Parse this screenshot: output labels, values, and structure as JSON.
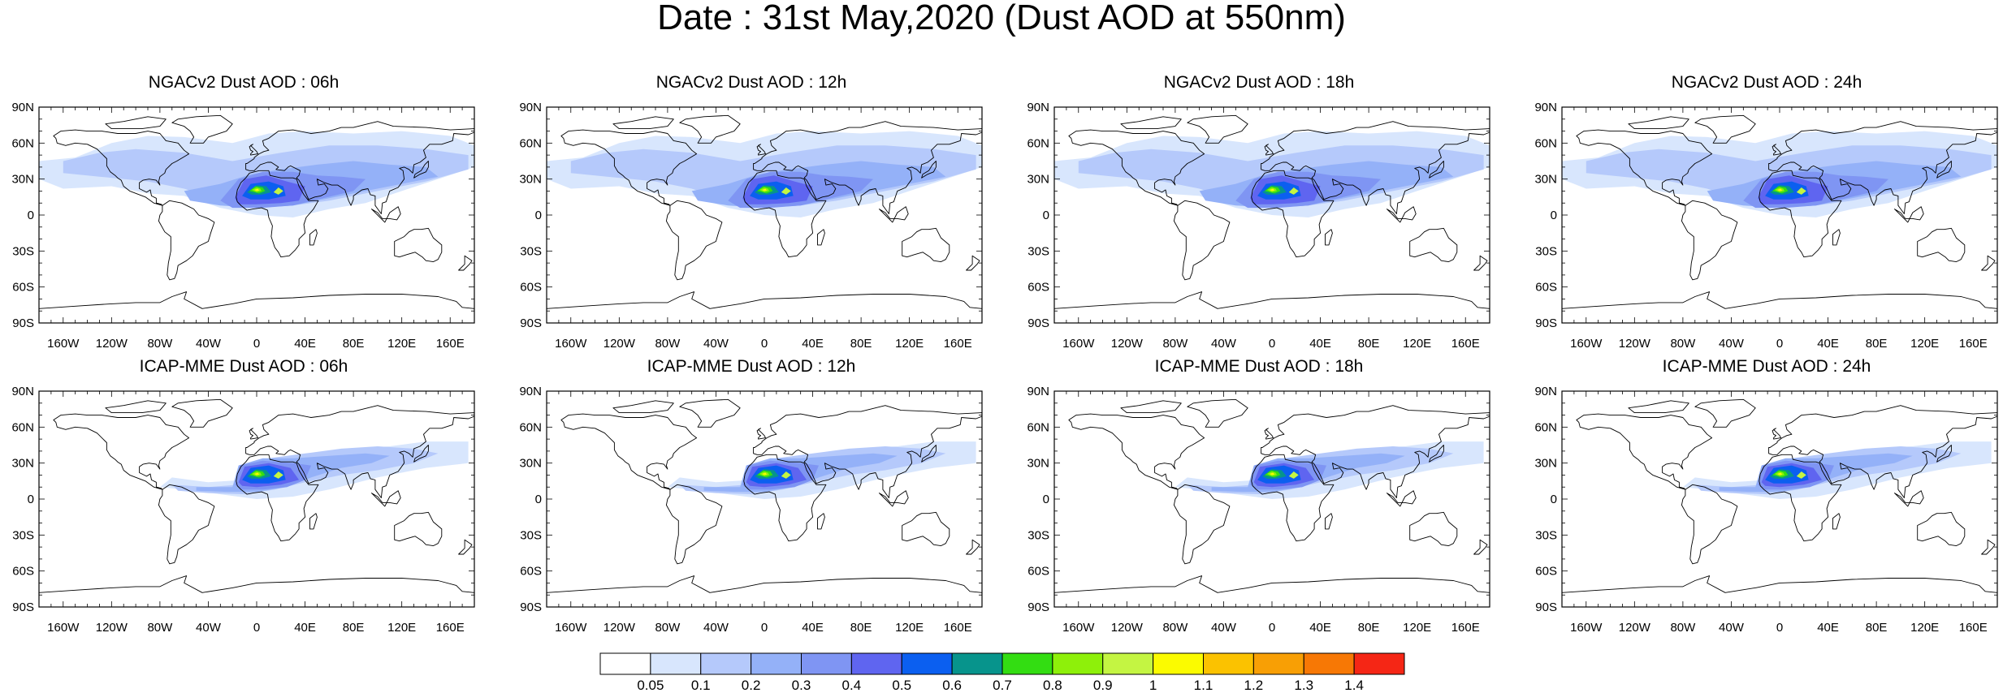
{
  "title": "Date : 31st May,2020 (Dust AOD at 550nm)",
  "panels": [
    {
      "title": "NGACv2 Dust AOD : 06h",
      "model": "ngac"
    },
    {
      "title": "NGACv2 Dust AOD : 12h",
      "model": "ngac"
    },
    {
      "title": "NGACv2 Dust AOD : 18h",
      "model": "ngac"
    },
    {
      "title": "NGACv2 Dust AOD : 24h",
      "model": "ngac"
    },
    {
      "title": "ICAP-MME Dust AOD : 06h",
      "model": "icap"
    },
    {
      "title": "ICAP-MME Dust AOD : 12h",
      "model": "icap"
    },
    {
      "title": "ICAP-MME Dust AOD : 18h",
      "model": "icap"
    },
    {
      "title": "ICAP-MME Dust AOD : 24h",
      "model": "icap"
    }
  ],
  "axes": {
    "lat_labels": [
      "90N",
      "60N",
      "30N",
      "0",
      "30S",
      "60S",
      "90S"
    ],
    "lat_values": [
      90,
      60,
      30,
      0,
      -30,
      -60,
      -90
    ],
    "lon_labels": [
      "160W",
      "120W",
      "80W",
      "40W",
      "0",
      "40E",
      "80E",
      "120E",
      "160E"
    ],
    "lon_values": [
      -160,
      -120,
      -80,
      -40,
      0,
      40,
      80,
      120,
      160
    ]
  },
  "colorbar": {
    "labels": [
      "0.05",
      "0.1",
      "0.2",
      "0.3",
      "0.4",
      "0.5",
      "0.6",
      "0.7",
      "0.8",
      "0.9",
      "1",
      "1.1",
      "1.2",
      "1.3",
      "1.4"
    ],
    "colors": [
      "#ffffff",
      "#d8e6fd",
      "#b5c9fb",
      "#94b1f8",
      "#7f95f3",
      "#5f65f0",
      "#0b5ff0",
      "#07948c",
      "#33dd12",
      "#8ef00a",
      "#c4f542",
      "#fbfb00",
      "#fbc200",
      "#f89f05",
      "#f77805",
      "#f52615"
    ]
  }
}
